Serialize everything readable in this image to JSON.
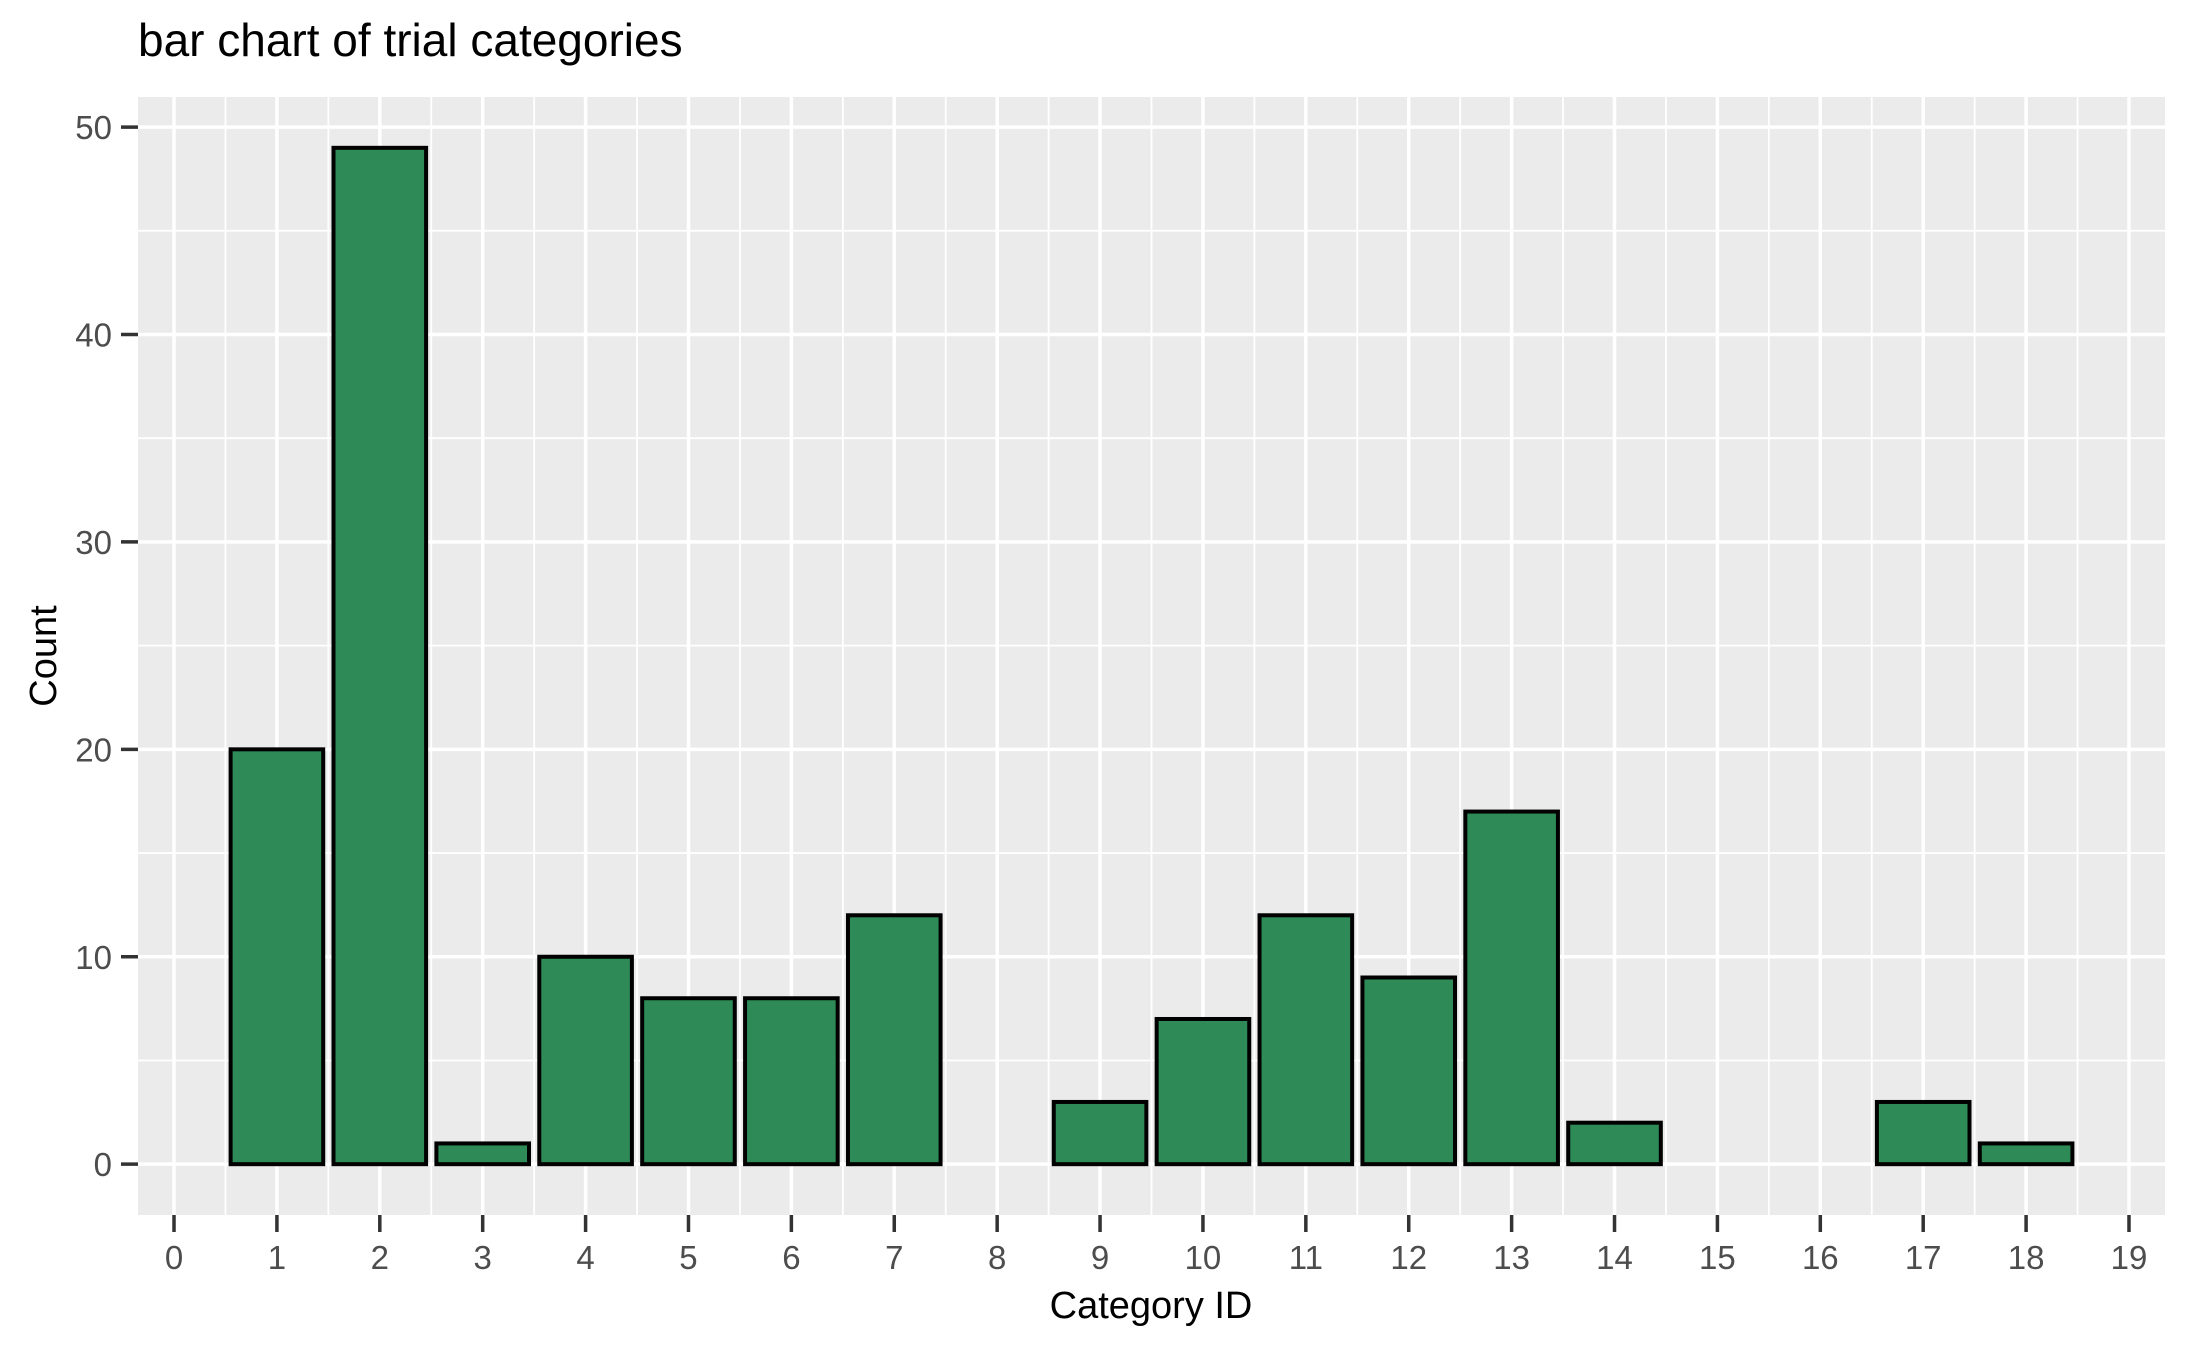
{
  "chart_data": {
    "type": "bar",
    "title": "bar chart of trial categories",
    "xlabel": "Category ID",
    "ylabel": "Count",
    "categories": [
      0,
      1,
      2,
      3,
      4,
      5,
      6,
      7,
      8,
      9,
      10,
      11,
      12,
      13,
      14,
      15,
      16,
      17,
      18,
      19
    ],
    "values": [
      0,
      20,
      49,
      1,
      10,
      8,
      8,
      12,
      0,
      3,
      7,
      12,
      9,
      17,
      2,
      0,
      0,
      3,
      1,
      0
    ],
    "x_ticks": [
      0,
      1,
      2,
      3,
      4,
      5,
      6,
      7,
      8,
      9,
      10,
      11,
      12,
      13,
      14,
      15,
      16,
      17,
      18,
      19
    ],
    "y_ticks": [
      0,
      10,
      20,
      30,
      40,
      50
    ],
    "y_minor_ticks": [
      5,
      15,
      25,
      35,
      45
    ],
    "xlim": [
      -0.35,
      19.35
    ],
    "ylim": [
      -2.45,
      51.45
    ],
    "bar_width": 0.9,
    "grid": "major+minor",
    "legend": "none",
    "style": {
      "bar_fill": "#2E8B57",
      "bar_stroke": "#000000",
      "panel_background": "#EBEBEB",
      "gridline_color": "#FFFFFF",
      "tick_label_color": "#4D4D4D",
      "tick_mark_color": "#333333",
      "text_color": "#000000",
      "figure_background": "#FFFFFF"
    }
  }
}
